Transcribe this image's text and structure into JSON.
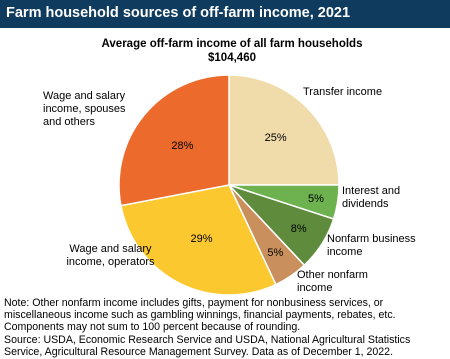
{
  "chart_data": {
    "type": "pie",
    "title": "Farm household sources of off-farm income, 2021",
    "subtitle": "Average off-farm income of all farm households",
    "total_label": "$104,460",
    "categories": [
      "Transfer income",
      "Interest and dividends",
      "Nonfarm business income",
      "Other nonfarm income",
      "Wage and salary income, operators",
      "Wage and salary income, spouses and others"
    ],
    "values": [
      25,
      5,
      8,
      5,
      29,
      28
    ],
    "value_labels": [
      "25%",
      "5%",
      "8%",
      "5%",
      "29%",
      "28%"
    ],
    "colors": [
      "#f0dcab",
      "#6db24f",
      "#5e8c3c",
      "#c98f5c",
      "#fcc830",
      "#ec6a2c"
    ],
    "note": "Note: Other nonfarm income includes gifts, payment for nonbusiness services, or miscellaneous income such as gambling winnings, financial payments, rebates, etc. Components may not sum to 100 percent because of rounding.",
    "source": "Source: USDA, Economic Research Service and USDA, National Agricultural Statistics Service, Agricultural Resource Management Survey. Data as of December 1, 2022."
  }
}
